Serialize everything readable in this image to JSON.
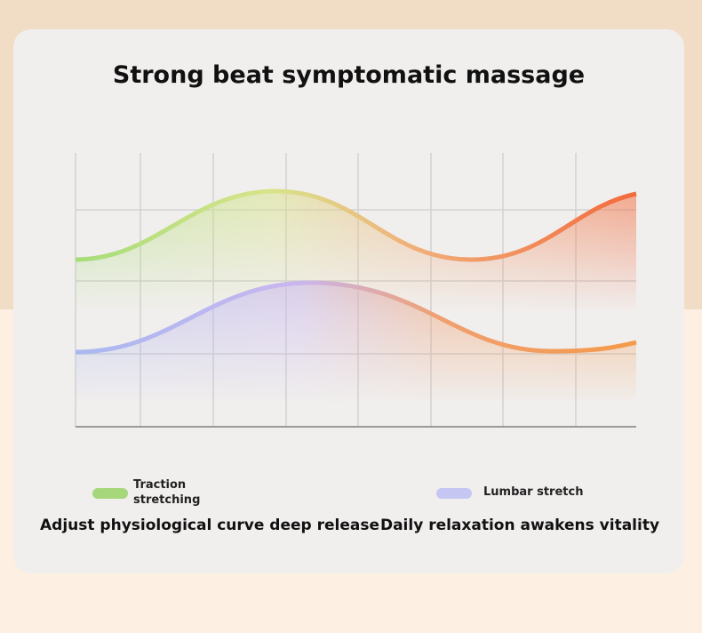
{
  "title": "Strong beat symptomatic massage",
  "legend": [
    {
      "label": "Traction stretching",
      "caption": "Adjust physiological curve deep release"
    },
    {
      "label": "Lumbar stretch",
      "caption": "Daily relaxation awakens vitality"
    }
  ]
}
